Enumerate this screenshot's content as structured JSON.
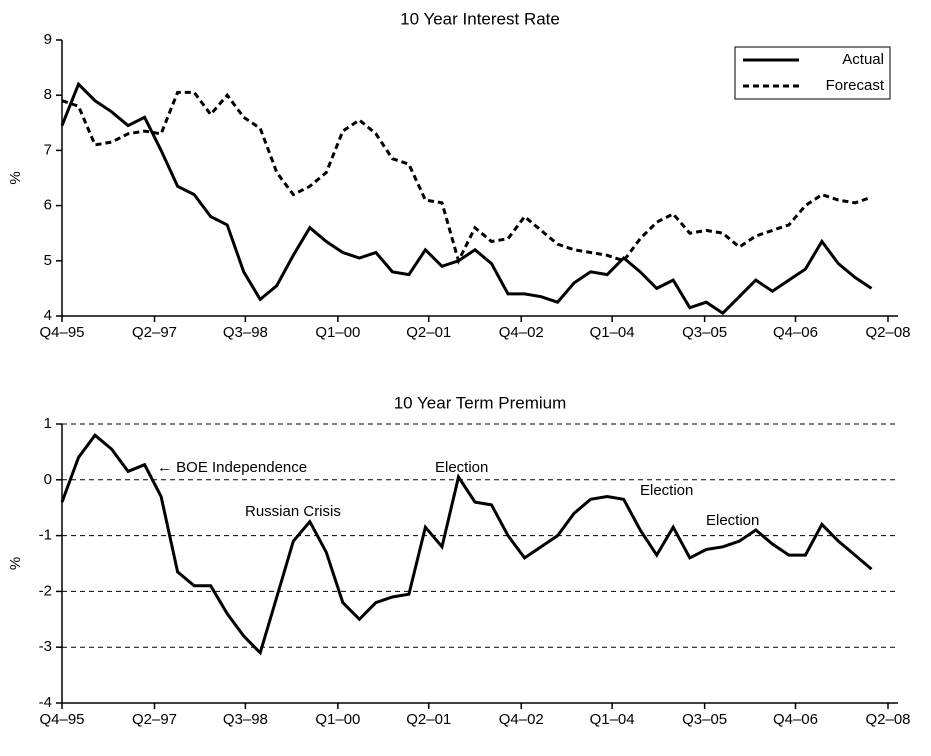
{
  "chart_data": [
    {
      "type": "line",
      "title": "10 Year Interest Rate",
      "ylabel": "%",
      "x": [
        0,
        1,
        2,
        3,
        4,
        5,
        6,
        7,
        8,
        9,
        10,
        11,
        12,
        13,
        14,
        15,
        16,
        17,
        18,
        19,
        20,
        21,
        22,
        23,
        24,
        25,
        26,
        27,
        28,
        29,
        30,
        31,
        32,
        33,
        34,
        35,
        36,
        37,
        38,
        39,
        40,
        41,
        42,
        43,
        44,
        45,
        46,
        47,
        48,
        49
      ],
      "series": [
        {
          "name": "Actual",
          "color": "#000000",
          "linestyle": "solid",
          "values": [
            7.45,
            8.2,
            7.9,
            7.7,
            7.45,
            7.6,
            7.0,
            6.35,
            6.2,
            5.8,
            5.65,
            4.8,
            4.3,
            4.55,
            5.1,
            5.6,
            5.35,
            5.15,
            5.05,
            5.15,
            4.8,
            4.75,
            5.2,
            4.9,
            5.0,
            5.2,
            4.95,
            4.4,
            4.4,
            4.35,
            4.25,
            4.6,
            4.8,
            4.75,
            5.05,
            4.8,
            4.5,
            4.65,
            4.15,
            4.25,
            4.05,
            4.35,
            4.65,
            4.45,
            4.65,
            4.85,
            5.35,
            4.95,
            4.7,
            4.5
          ]
        },
        {
          "name": "Forecast",
          "color": "#000000",
          "linestyle": "dashed",
          "values": [
            7.9,
            7.8,
            7.1,
            7.15,
            7.3,
            7.35,
            7.3,
            8.05,
            8.05,
            7.65,
            8.0,
            7.6,
            7.4,
            6.6,
            6.2,
            6.35,
            6.6,
            7.35,
            7.55,
            7.3,
            6.85,
            6.75,
            6.1,
            6.05,
            5.0,
            5.6,
            5.35,
            5.4,
            5.8,
            5.55,
            5.3,
            5.2,
            5.15,
            5.1,
            5.0,
            5.4,
            5.7,
            5.85,
            5.5,
            5.55,
            5.5,
            5.25,
            5.45,
            5.55,
            5.65,
            6.0,
            6.2,
            6.1,
            6.05,
            6.15
          ]
        }
      ],
      "xlim": [
        0,
        50
      ],
      "xticks": [
        {
          "value": 0,
          "label": "Q4–95"
        },
        {
          "value": 5.6,
          "label": "Q2–97"
        },
        {
          "value": 11.1,
          "label": "Q3–98"
        },
        {
          "value": 16.7,
          "label": "Q1–00"
        },
        {
          "value": 22.2,
          "label": "Q2–01"
        },
        {
          "value": 27.8,
          "label": "Q4–02"
        },
        {
          "value": 33.3,
          "label": "Q1–04"
        },
        {
          "value": 38.9,
          "label": "Q3–05"
        },
        {
          "value": 44.4,
          "label": "Q4–06"
        },
        {
          "value": 50,
          "label": "Q2–08"
        }
      ],
      "ylim": [
        4,
        9
      ],
      "yticks": [
        4,
        5,
        6,
        7,
        8,
        9
      ],
      "grid": false,
      "legend": "top-right"
    },
    {
      "type": "line",
      "title": "10 Year Term Premium",
      "ylabel": "%",
      "x": [
        0,
        1,
        2,
        3,
        4,
        5,
        6,
        7,
        8,
        9,
        10,
        11,
        12,
        13,
        14,
        15,
        16,
        17,
        18,
        19,
        20,
        21,
        22,
        23,
        24,
        25,
        26,
        27,
        28,
        29,
        30,
        31,
        32,
        33,
        34,
        35,
        36,
        37,
        38,
        39,
        40,
        41,
        42,
        43,
        44,
        45,
        46,
        47,
        48,
        49
      ],
      "series": [
        {
          "color": "#000000",
          "linestyle": "solid",
          "values": [
            -0.4,
            0.4,
            0.8,
            0.55,
            0.15,
            0.27,
            -0.3,
            -1.65,
            -1.9,
            -1.9,
            -2.4,
            -2.8,
            -3.1,
            -2.1,
            -1.1,
            -0.75,
            -1.3,
            -2.2,
            -2.5,
            -2.2,
            -2.1,
            -2.05,
            -0.85,
            -1.2,
            0.05,
            -0.4,
            -0.45,
            -1.0,
            -1.4,
            -1.2,
            -1.0,
            -0.6,
            -0.35,
            -0.3,
            -0.35,
            -0.9,
            -1.35,
            -0.85,
            -1.4,
            -1.25,
            -1.2,
            -1.1,
            -0.9,
            -1.15,
            -1.35,
            -1.35,
            -0.8,
            -1.1,
            -1.35,
            -1.6
          ]
        }
      ],
      "annotations": [
        "← BOE Independence",
        "Russian Crisis",
        "Election",
        "Election",
        "Election"
      ],
      "xlim": [
        0,
        50
      ],
      "xticks": [
        {
          "value": 0,
          "label": "Q4–95"
        },
        {
          "value": 5.6,
          "label": "Q2–97"
        },
        {
          "value": 11.1,
          "label": "Q3–98"
        },
        {
          "value": 16.7,
          "label": "Q1–00"
        },
        {
          "value": 22.2,
          "label": "Q2–01"
        },
        {
          "value": 27.8,
          "label": "Q4–02"
        },
        {
          "value": 33.3,
          "label": "Q1–04"
        },
        {
          "value": 38.9,
          "label": "Q3–05"
        },
        {
          "value": 44.4,
          "label": "Q4–06"
        },
        {
          "value": 50,
          "label": "Q2–08"
        }
      ],
      "ylim": [
        -4,
        1
      ],
      "yticks": [
        -4,
        -3,
        -2,
        -1,
        0,
        1
      ],
      "grid": true
    }
  ]
}
